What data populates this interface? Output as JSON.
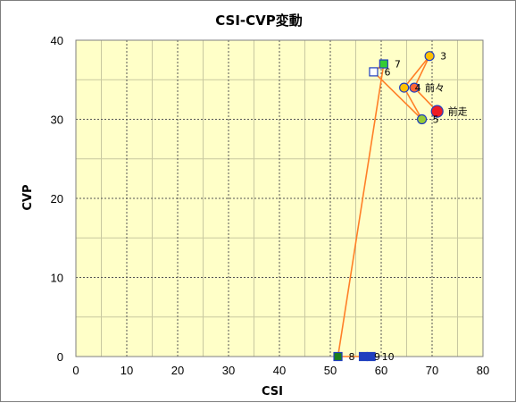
{
  "chart_data": {
    "type": "scatter",
    "title": "CSI-CVP変動",
    "xlabel": "CSI",
    "ylabel": "CVP",
    "xlim": [
      0,
      80
    ],
    "ylim": [
      0,
      40
    ],
    "xticks": [
      0,
      10,
      20,
      30,
      40,
      50,
      60,
      70,
      80
    ],
    "yticks": [
      0,
      10,
      20,
      30,
      40
    ],
    "minor_x_step": 5,
    "minor_y_step": 5,
    "grid": true,
    "plot_background": "#ffffc8",
    "line_color": "#ff7f27",
    "path": [
      {
        "label": "10",
        "x": 58,
        "y": 0,
        "marker": "square",
        "fill": "#1f3fbf",
        "stroke": "#1f3fbf"
      },
      {
        "label": "9",
        "x": 56.5,
        "y": 0,
        "marker": "square",
        "fill": "#1f3fbf",
        "stroke": "#1f3fbf"
      },
      {
        "label": "8",
        "x": 51.5,
        "y": 0,
        "marker": "square",
        "fill": "#1a7f1a",
        "stroke": "#1f3fbf"
      },
      {
        "label": "7",
        "x": 60.5,
        "y": 37,
        "marker": "square",
        "fill": "#33cc33",
        "stroke": "#1f3fbf"
      },
      {
        "label": "6",
        "x": 58.5,
        "y": 36,
        "marker": "square",
        "fill": "#ffffff",
        "stroke": "#1f3fbf"
      },
      {
        "label": "5",
        "x": 68,
        "y": 30,
        "marker": "circle",
        "fill": "#99cc33",
        "stroke": "#1f3fbf"
      },
      {
        "label": "4",
        "x": 64.5,
        "y": 34,
        "marker": "circle",
        "fill": "#ffc000",
        "stroke": "#1f3fbf"
      },
      {
        "label": "3",
        "x": 69.5,
        "y": 38,
        "marker": "circle",
        "fill": "#ffc000",
        "stroke": "#1f3fbf"
      },
      {
        "label": "前々",
        "x": 66.5,
        "y": 34,
        "marker": "circle",
        "fill": "#ff6633",
        "stroke": "#1f3fbf"
      },
      {
        "label": "前走",
        "x": 71,
        "y": 31,
        "marker": "circle-large",
        "fill": "#ee1c24",
        "stroke": "#1f3fbf"
      }
    ]
  }
}
